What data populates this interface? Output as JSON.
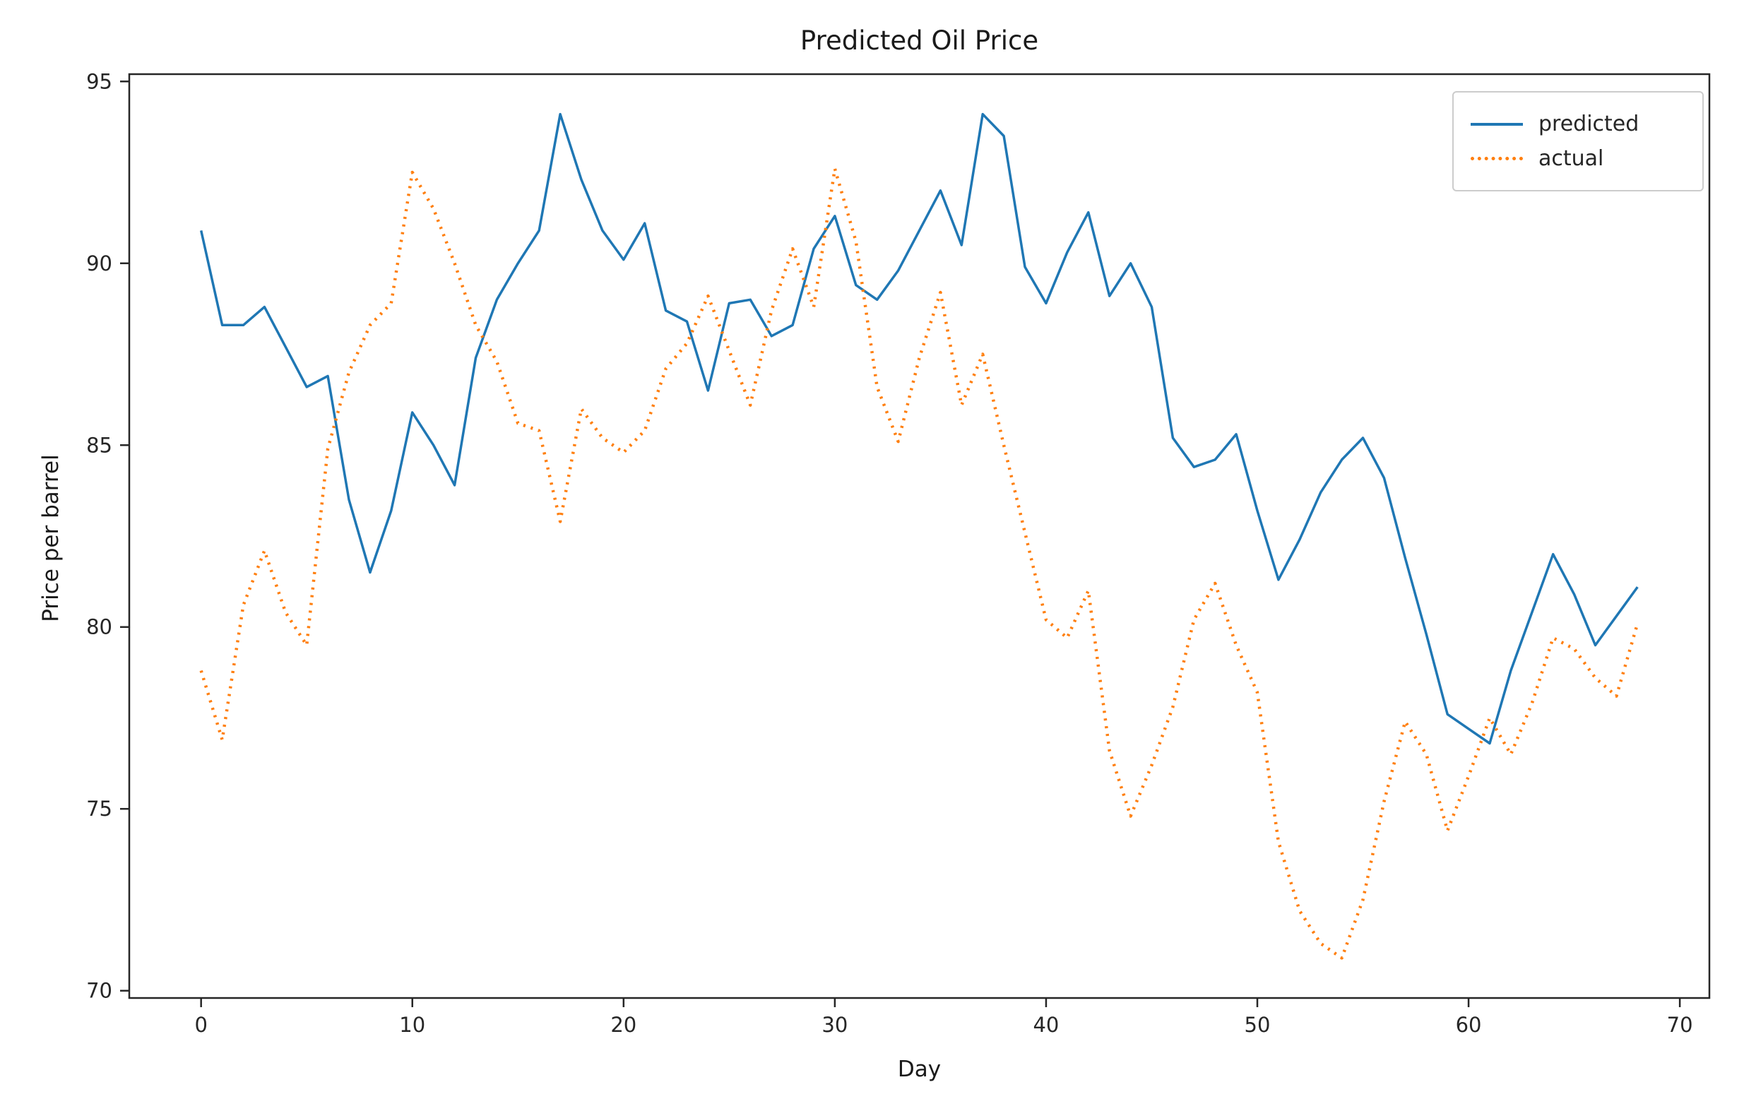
{
  "chart_data": {
    "type": "line",
    "title": "Predicted Oil Price",
    "xlabel": "Day",
    "ylabel": "Price per barrel",
    "x_ticks": [
      0,
      10,
      20,
      30,
      40,
      50,
      60,
      70
    ],
    "y_ticks": [
      70,
      75,
      80,
      85,
      90,
      95
    ],
    "xlim": [
      -3.4,
      71.4
    ],
    "ylim": [
      69.8,
      95.2
    ],
    "grid": false,
    "legend_position": "upper right",
    "axis_color": "#262626",
    "x": [
      0,
      1,
      2,
      3,
      4,
      5,
      6,
      7,
      8,
      9,
      10,
      11,
      12,
      13,
      14,
      15,
      16,
      17,
      18,
      19,
      20,
      21,
      22,
      23,
      24,
      25,
      26,
      27,
      28,
      29,
      30,
      31,
      32,
      33,
      34,
      35,
      36,
      37,
      38,
      39,
      40,
      41,
      42,
      43,
      44,
      45,
      46,
      47,
      48,
      49,
      50,
      51,
      52,
      53,
      54,
      55,
      56,
      57,
      58,
      59,
      60,
      61,
      62,
      63,
      64,
      65,
      66,
      67,
      68
    ],
    "series": [
      {
        "name": "predicted",
        "color": "#1f77b4",
        "style": "solid",
        "values": [
          90.9,
          88.3,
          88.3,
          88.8,
          87.7,
          86.6,
          86.9,
          83.5,
          81.5,
          83.2,
          85.9,
          85.0,
          83.9,
          87.4,
          89.0,
          90.0,
          90.9,
          94.1,
          92.3,
          90.9,
          90.1,
          91.1,
          88.7,
          88.4,
          86.5,
          88.9,
          89.0,
          88.0,
          88.3,
          90.4,
          91.3,
          89.4,
          89.0,
          89.8,
          90.9,
          92.0,
          90.5,
          94.1,
          93.5,
          89.9,
          88.9,
          90.3,
          91.4,
          89.1,
          90.0,
          88.8,
          85.2,
          84.4,
          84.6,
          85.3,
          83.2,
          81.3,
          82.4,
          83.7,
          84.6,
          85.2,
          84.1,
          81.9,
          79.8,
          77.6,
          77.2,
          76.8,
          78.8,
          80.4,
          82.0,
          80.9,
          79.5,
          80.3,
          81.1
        ]
      },
      {
        "name": "actual",
        "color": "#ff7f0e",
        "style": "dotted",
        "values": [
          78.8,
          76.9,
          80.6,
          82.1,
          80.4,
          79.5,
          84.9,
          87.0,
          88.3,
          88.9,
          92.5,
          91.5,
          90.0,
          88.3,
          87.3,
          85.6,
          85.4,
          82.9,
          86.0,
          85.2,
          84.8,
          85.4,
          87.1,
          87.8,
          89.1,
          87.6,
          86.1,
          88.7,
          90.4,
          88.8,
          92.6,
          90.6,
          86.6,
          85.1,
          87.4,
          89.2,
          86.1,
          87.5,
          85.0,
          82.6,
          80.2,
          79.7,
          81.0,
          76.6,
          74.8,
          76.2,
          77.8,
          80.2,
          81.2,
          79.5,
          78.2,
          74.1,
          72.2,
          71.3,
          70.9,
          72.5,
          75.2,
          77.4,
          76.5,
          74.4,
          75.9,
          77.5,
          76.5,
          77.9,
          79.7,
          79.4,
          78.6,
          78.1,
          80.1
        ]
      }
    ]
  }
}
